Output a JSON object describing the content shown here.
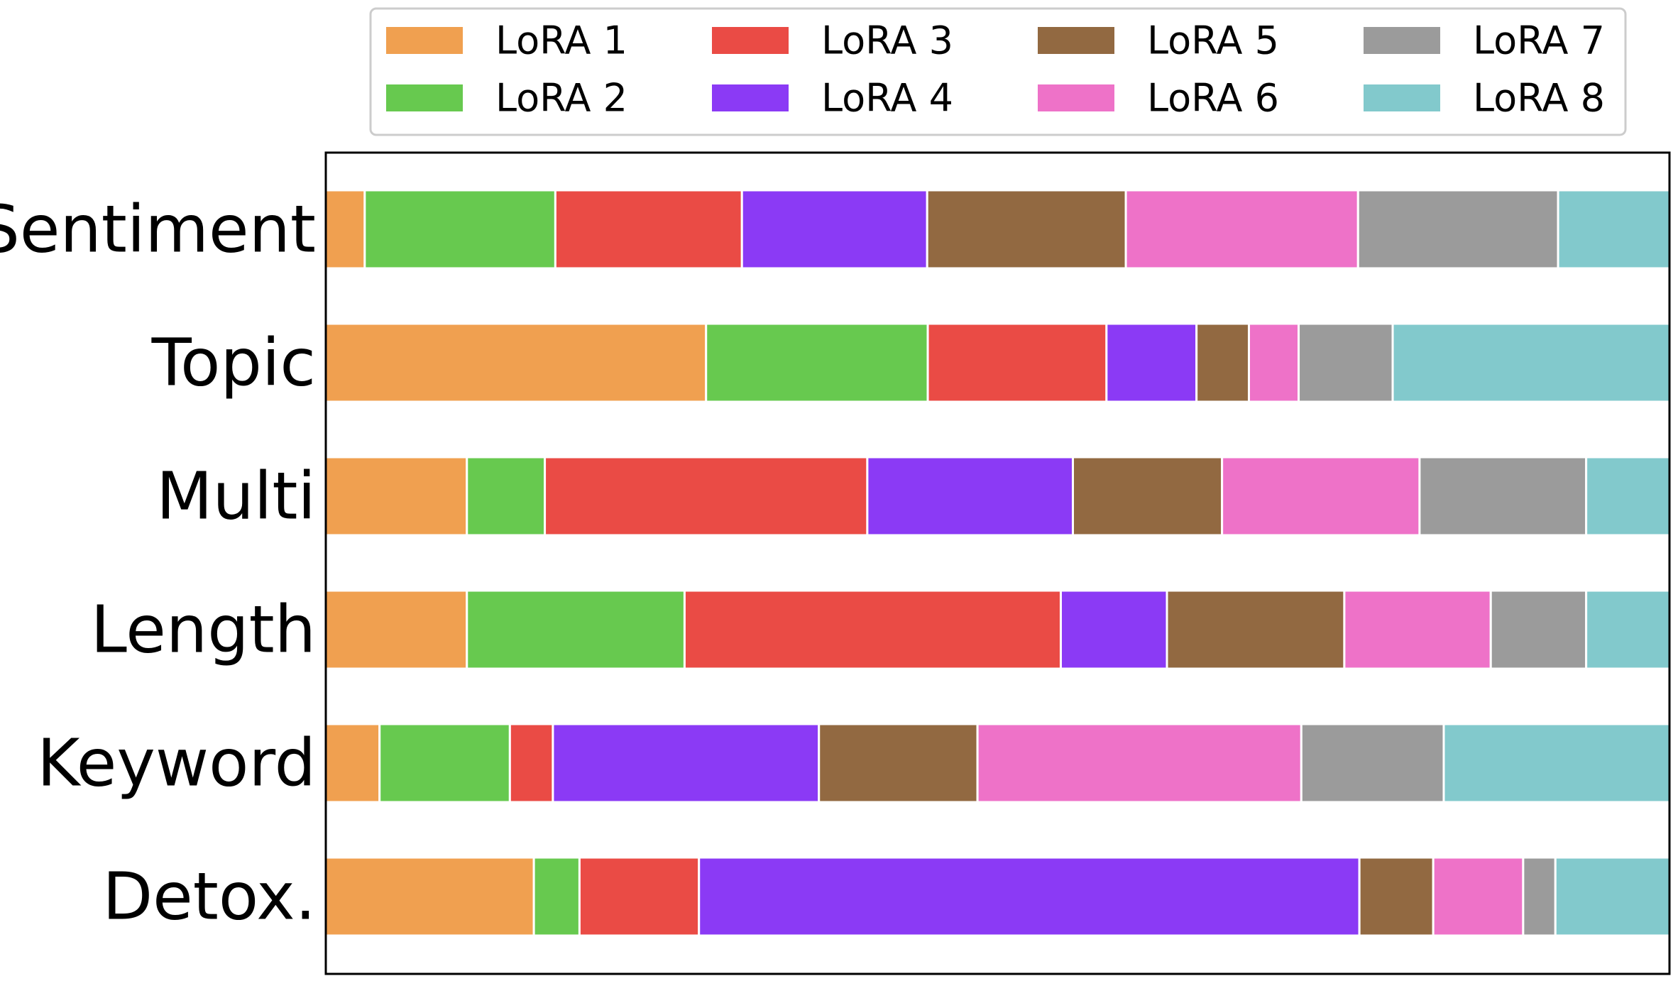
{
  "chart_data": {
    "type": "bar",
    "orientation": "horizontal",
    "stacked": true,
    "normalized": true,
    "title": "",
    "xlabel": "",
    "ylabel": "",
    "xlim": [
      0,
      1
    ],
    "x_ticks_visible": false,
    "grid": false,
    "legend_position": "top",
    "categories": [
      "Sentiment",
      "Topic",
      "Multi",
      "Length",
      "Keyword",
      "Detox."
    ],
    "series": [
      {
        "name": "LoRA 1",
        "color": "#F0A050",
        "values": [
          0.029,
          0.283,
          0.105,
          0.105,
          0.04,
          0.155
        ]
      },
      {
        "name": "LoRA 2",
        "color": "#67C94F",
        "values": [
          0.142,
          0.165,
          0.058,
          0.162,
          0.097,
          0.034
        ]
      },
      {
        "name": "LoRA 3",
        "color": "#EA4B45",
        "values": [
          0.139,
          0.133,
          0.24,
          0.28,
          0.032,
          0.089
        ]
      },
      {
        "name": "LoRA 4",
        "color": "#8B3AF5",
        "values": [
          0.138,
          0.067,
          0.153,
          0.079,
          0.198,
          0.492
        ]
      },
      {
        "name": "LoRA 5",
        "color": "#926941",
        "values": [
          0.148,
          0.039,
          0.111,
          0.132,
          0.118,
          0.055
        ]
      },
      {
        "name": "LoRA 6",
        "color": "#EE72C8",
        "values": [
          0.173,
          0.037,
          0.147,
          0.109,
          0.241,
          0.067
        ]
      },
      {
        "name": "LoRA 7",
        "color": "#9B9B9B",
        "values": [
          0.149,
          0.07,
          0.124,
          0.071,
          0.106,
          0.024
        ]
      },
      {
        "name": "LoRA 8",
        "color": "#82C9CC",
        "values": [
          0.083,
          0.206,
          0.062,
          0.062,
          0.168,
          0.085
        ]
      }
    ]
  }
}
